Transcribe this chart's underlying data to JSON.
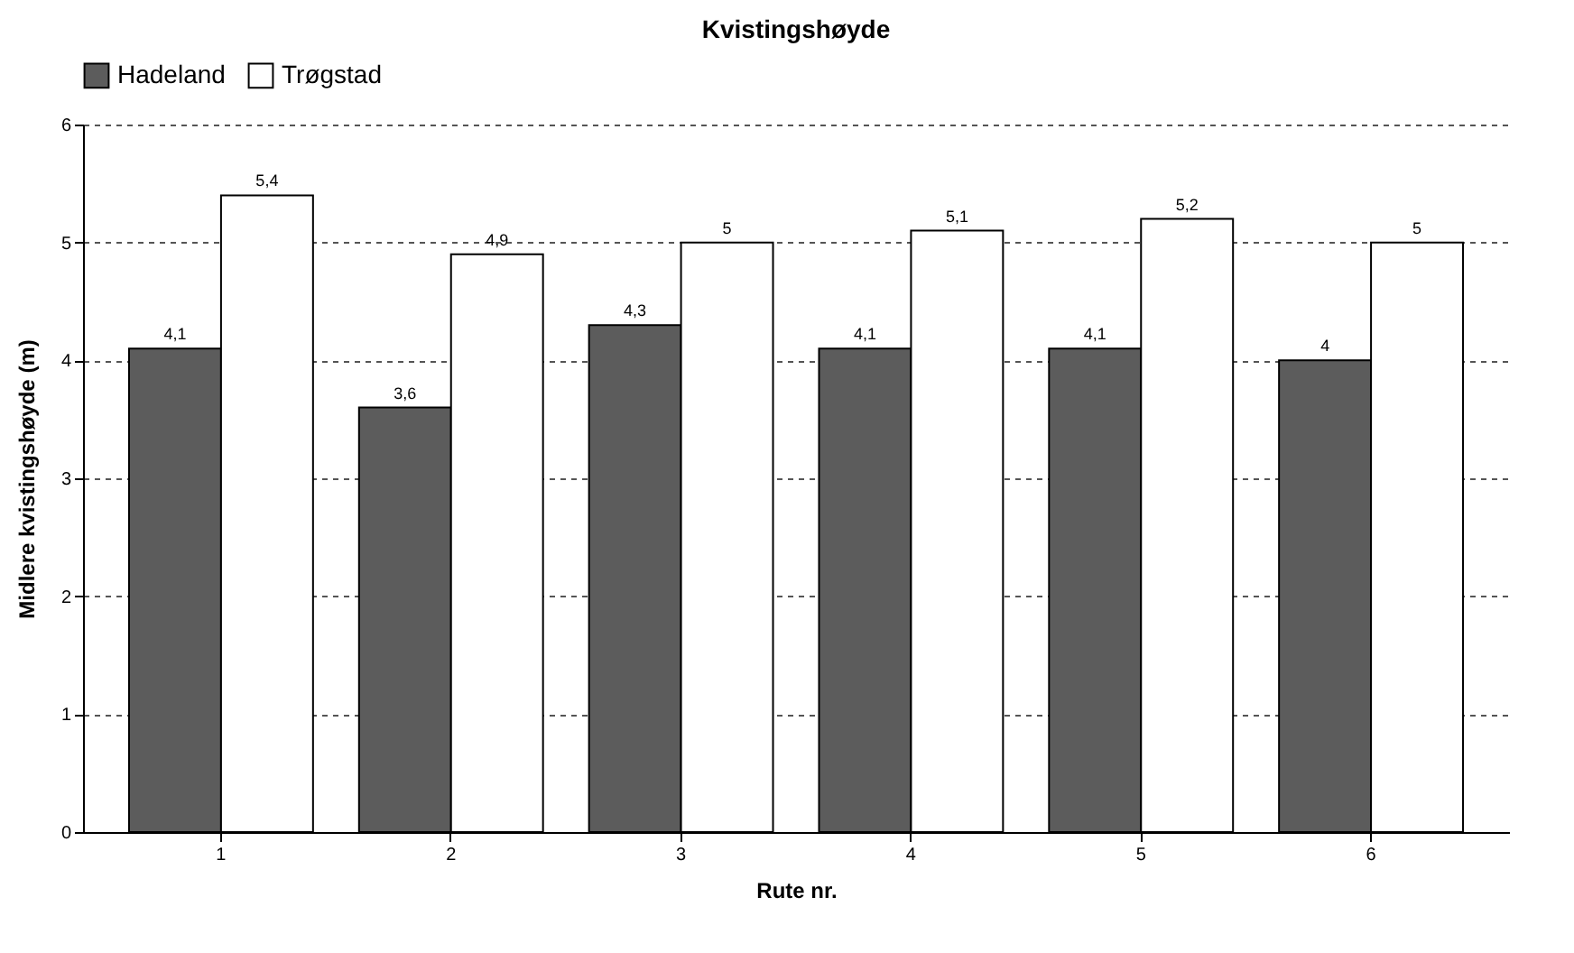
{
  "chart_data": {
    "type": "bar",
    "title": "Kvistingshøyde",
    "xlabel": "Rute nr.",
    "ylabel": "Midlere kvistingshøyde (m)",
    "categories": [
      "1",
      "2",
      "3",
      "4",
      "5",
      "6"
    ],
    "series": [
      {
        "name": "Hadeland",
        "color": "#5c5c5c",
        "values": [
          4.1,
          3.6,
          4.3,
          4.1,
          4.1,
          4.0
        ],
        "value_labels": [
          "4,1",
          "3,6",
          "4,3",
          "4,1",
          "4,1",
          "4"
        ]
      },
      {
        "name": "Trøgstad",
        "color": "#ffffff",
        "values": [
          5.4,
          4.9,
          5.0,
          5.1,
          5.2,
          5.0
        ],
        "value_labels": [
          "5,4",
          "4,9",
          "5",
          "5,1",
          "5,2",
          "5"
        ]
      }
    ],
    "ylim": [
      0,
      6
    ],
    "yticks": [
      0,
      1,
      2,
      3,
      4,
      5,
      6
    ],
    "grid": "y",
    "legend": "top"
  }
}
